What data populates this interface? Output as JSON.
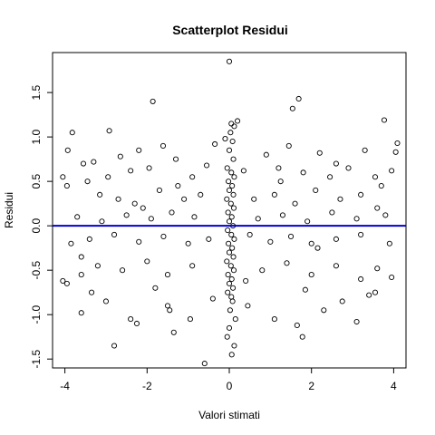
{
  "chart_data": {
    "type": "scatter",
    "title": "Scatterplot Residui",
    "xlabel": "Valori stimati",
    "ylabel": "Residui",
    "xlim": [
      -4.3,
      4.3
    ],
    "ylim": [
      -1.6,
      1.95
    ],
    "x_ticks": [
      -4,
      -2,
      0,
      2,
      4
    ],
    "x_tick_labels": [
      "-4",
      "-2",
      "0",
      "2",
      "4"
    ],
    "y_ticks": [
      -1.5,
      -1.0,
      -0.5,
      0.0,
      0.5,
      1.0,
      1.5
    ],
    "y_tick_labels": [
      "-1.5",
      "-1.0",
      "-0.5",
      "0.0",
      "0.5",
      "1.0",
      "1.5"
    ],
    "reference_line": {
      "y": 0,
      "color": "#0000cd"
    },
    "marker_color": "#000000",
    "grid": false,
    "points": [
      [
        0.0,
        1.85
      ],
      [
        -1.86,
        1.4
      ],
      [
        1.69,
        1.43
      ],
      [
        1.54,
        1.32
      ],
      [
        3.77,
        1.19
      ],
      [
        -3.82,
        1.05
      ],
      [
        4.09,
        0.93
      ],
      [
        -2.92,
        1.07
      ],
      [
        -1.61,
        0.9
      ],
      [
        0.05,
        1.15
      ],
      [
        0.12,
        1.12
      ],
      [
        0.2,
        1.18
      ],
      [
        0.03,
        1.05
      ],
      [
        -0.1,
        0.98
      ],
      [
        0.08,
        0.95
      ],
      [
        -3.93,
        0.85
      ],
      [
        -4.05,
        0.55
      ],
      [
        -3.95,
        0.45
      ],
      [
        -3.55,
        0.7
      ],
      [
        -3.3,
        0.72
      ],
      [
        -2.65,
        0.78
      ],
      [
        -2.4,
        0.62
      ],
      [
        -2.2,
        0.85
      ],
      [
        -1.95,
        0.65
      ],
      [
        -1.3,
        0.75
      ],
      [
        -0.9,
        0.55
      ],
      [
        -0.55,
        0.68
      ],
      [
        0.9,
        0.8
      ],
      [
        1.2,
        0.65
      ],
      [
        1.8,
        0.6
      ],
      [
        2.2,
        0.82
      ],
      [
        2.6,
        0.7
      ],
      [
        2.9,
        0.65
      ],
      [
        3.3,
        0.85
      ],
      [
        3.55,
        0.55
      ],
      [
        3.95,
        0.62
      ],
      [
        4.05,
        0.83
      ],
      [
        -3.15,
        0.35
      ],
      [
        -2.7,
        0.3
      ],
      [
        -2.3,
        0.25
      ],
      [
        -1.7,
        0.4
      ],
      [
        -1.1,
        0.3
      ],
      [
        -0.7,
        0.35
      ],
      [
        0.6,
        0.3
      ],
      [
        1.1,
        0.35
      ],
      [
        1.6,
        0.25
      ],
      [
        2.1,
        0.4
      ],
      [
        2.7,
        0.3
      ],
      [
        3.2,
        0.35
      ],
      [
        3.7,
        0.45
      ],
      [
        -3.7,
        0.1
      ],
      [
        -3.1,
        0.05
      ],
      [
        -2.5,
        0.12
      ],
      [
        -1.9,
        0.08
      ],
      [
        -1.4,
        0.15
      ],
      [
        -0.85,
        0.1
      ],
      [
        0.7,
        0.08
      ],
      [
        1.3,
        0.12
      ],
      [
        1.9,
        0.05
      ],
      [
        2.5,
        0.15
      ],
      [
        3.1,
        0.08
      ],
      [
        3.8,
        0.12
      ],
      [
        -3.85,
        -0.2
      ],
      [
        -3.4,
        -0.15
      ],
      [
        -2.8,
        -0.1
      ],
      [
        -2.2,
        -0.18
      ],
      [
        -1.6,
        -0.12
      ],
      [
        -1.0,
        -0.2
      ],
      [
        -0.5,
        -0.15
      ],
      [
        0.5,
        -0.1
      ],
      [
        1.0,
        -0.18
      ],
      [
        1.5,
        -0.12
      ],
      [
        2.0,
        -0.2
      ],
      [
        2.6,
        -0.15
      ],
      [
        3.2,
        -0.1
      ],
      [
        3.9,
        -0.2
      ],
      [
        -4.05,
        -0.62
      ],
      [
        -3.95,
        -0.65
      ],
      [
        -3.6,
        -0.55
      ],
      [
        -3.2,
        -0.45
      ],
      [
        -2.6,
        -0.5
      ],
      [
        -2.0,
        -0.4
      ],
      [
        -1.5,
        -0.55
      ],
      [
        -0.9,
        -0.45
      ],
      [
        0.8,
        -0.5
      ],
      [
        1.4,
        -0.42
      ],
      [
        2.0,
        -0.55
      ],
      [
        2.6,
        -0.45
      ],
      [
        3.2,
        -0.6
      ],
      [
        3.6,
        -0.48
      ],
      [
        3.95,
        -0.58
      ],
      [
        -3.6,
        -0.98
      ],
      [
        -3.0,
        -0.85
      ],
      [
        -2.4,
        -1.05
      ],
      [
        -2.25,
        -1.1
      ],
      [
        -1.5,
        -0.9
      ],
      [
        -0.95,
        -1.05
      ],
      [
        0.45,
        -0.9
      ],
      [
        1.1,
        -1.05
      ],
      [
        1.65,
        -1.12
      ],
      [
        1.78,
        -1.25
      ],
      [
        2.3,
        -0.95
      ],
      [
        2.75,
        -0.85
      ],
      [
        3.1,
        -1.08
      ],
      [
        3.55,
        -0.75
      ],
      [
        -2.8,
        -1.35
      ],
      [
        -1.35,
        -1.2
      ],
      [
        -0.6,
        -1.55
      ],
      [
        0.06,
        -1.45
      ],
      [
        0.12,
        -1.35
      ],
      [
        -0.05,
        -1.25
      ],
      [
        0.0,
        -1.15
      ],
      [
        0.15,
        -1.05
      ],
      [
        0.02,
        -0.95
      ],
      [
        0.08,
        -0.85
      ],
      [
        0.0,
        0.85
      ],
      [
        0.1,
        0.75
      ],
      [
        -0.05,
        0.65
      ],
      [
        0.05,
        0.6
      ],
      [
        0.12,
        0.55
      ],
      [
        -0.02,
        0.5
      ],
      [
        0.07,
        0.45
      ],
      [
        0.0,
        0.4
      ],
      [
        0.1,
        0.35
      ],
      [
        -0.06,
        0.3
      ],
      [
        0.04,
        0.25
      ],
      [
        0.11,
        0.2
      ],
      [
        -0.03,
        0.15
      ],
      [
        0.06,
        0.1
      ],
      [
        0.0,
        0.05
      ],
      [
        0.09,
        0.0
      ],
      [
        -0.04,
        -0.05
      ],
      [
        0.05,
        -0.1
      ],
      [
        0.12,
        -0.15
      ],
      [
        -0.02,
        -0.2
      ],
      [
        0.07,
        -0.25
      ],
      [
        0.0,
        -0.3
      ],
      [
        0.1,
        -0.35
      ],
      [
        -0.06,
        -0.4
      ],
      [
        0.04,
        -0.45
      ],
      [
        0.11,
        -0.5
      ],
      [
        -0.03,
        -0.55
      ],
      [
        0.06,
        -0.6
      ],
      [
        0.0,
        -0.65
      ],
      [
        0.09,
        -0.7
      ],
      [
        -0.04,
        -0.75
      ],
      [
        0.05,
        -0.8
      ],
      [
        -3.45,
        0.5
      ],
      [
        -2.95,
        0.55
      ],
      [
        -1.25,
        0.45
      ],
      [
        1.25,
        0.5
      ],
      [
        2.45,
        0.55
      ],
      [
        -1.8,
        -0.7
      ],
      [
        1.85,
        -0.72
      ],
      [
        -3.35,
        -0.75
      ],
      [
        3.4,
        -0.78
      ],
      [
        -2.1,
        0.2
      ],
      [
        2.15,
        -0.25
      ],
      [
        -0.35,
        0.92
      ],
      [
        0.4,
        -0.62
      ],
      [
        0.35,
        0.62
      ],
      [
        -0.4,
        -0.82
      ],
      [
        3.6,
        0.2
      ],
      [
        -3.6,
        -0.35
      ],
      [
        1.45,
        0.9
      ],
      [
        -1.45,
        -0.95
      ]
    ]
  }
}
